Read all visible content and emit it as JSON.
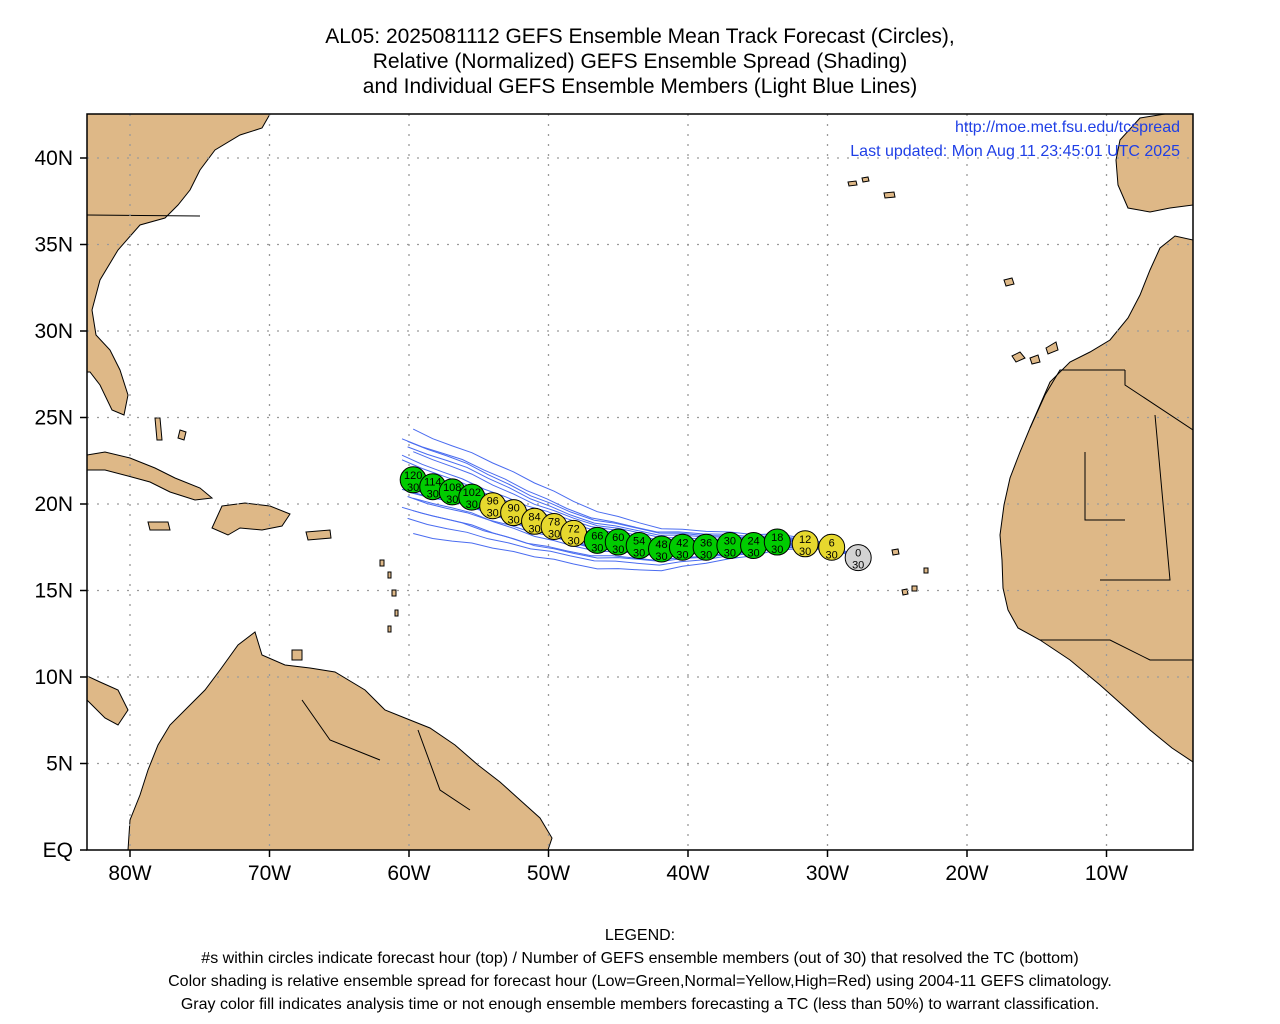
{
  "title_lines": [
    "AL05: 2025081112 GEFS Ensemble Mean Track Forecast (Circles),",
    "Relative (Normalized) GEFS Ensemble Spread (Shading)",
    "and Individual GEFS Ensemble Members (Light Blue Lines)"
  ],
  "source_url": "http://moe.met.fsu.edu/tcspread",
  "last_updated": "Last updated: Mon Aug 11 23:45:01 UTC 2025",
  "lat_labels": [
    "EQ",
    "5N",
    "10N",
    "15N",
    "20N",
    "25N",
    "30N",
    "35N",
    "40N"
  ],
  "lon_labels": [
    "80W",
    "70W",
    "60W",
    "50W",
    "40W",
    "30W",
    "20W",
    "10W"
  ],
  "legend": {
    "heading": "LEGEND:",
    "line1": "#s within circles indicate forecast hour (top) / Number of GEFS ensemble members (out of 30) that resolved the TC (bottom)",
    "line2": "Color shading is relative ensemble spread for forecast hour (Low=Green,Normal=Yellow,High=Red) using 2004-11 GEFS climatology.",
    "line3": "Gray color fill indicates analysis time or not enough ensemble members forecasting a TC (less than 50%) to warrant classification."
  },
  "colors": {
    "land": "#deb887",
    "ocean": "#ffffff",
    "member_lines": "#4a6cf0",
    "low_spread": "#00cc00",
    "normal_spread": "#e6d82e",
    "analysis": "#d3d3d3",
    "link_text": "#1f3fe6"
  },
  "track_points": [
    {
      "hour": "0",
      "members": "30",
      "lon": -27.8,
      "lat": 16.9,
      "spread": "gray"
    },
    {
      "hour": "6",
      "members": "30",
      "lon": -29.7,
      "lat": 17.5,
      "spread": "yellow"
    },
    {
      "hour": "12",
      "members": "30",
      "lon": -31.6,
      "lat": 17.7,
      "spread": "yellow"
    },
    {
      "hour": "18",
      "members": "30",
      "lon": -33.6,
      "lat": 17.8,
      "spread": "green"
    },
    {
      "hour": "24",
      "members": "30",
      "lon": -35.3,
      "lat": 17.6,
      "spread": "green"
    },
    {
      "hour": "30",
      "members": "30",
      "lon": -37.0,
      "lat": 17.6,
      "spread": "green"
    },
    {
      "hour": "36",
      "members": "30",
      "lon": -38.7,
      "lat": 17.5,
      "spread": "green"
    },
    {
      "hour": "42",
      "members": "30",
      "lon": -40.4,
      "lat": 17.5,
      "spread": "green"
    },
    {
      "hour": "48",
      "members": "30",
      "lon": -41.9,
      "lat": 17.4,
      "spread": "green"
    },
    {
      "hour": "54",
      "members": "30",
      "lon": -43.5,
      "lat": 17.6,
      "spread": "green"
    },
    {
      "hour": "60",
      "members": "30",
      "lon": -45.0,
      "lat": 17.8,
      "spread": "green"
    },
    {
      "hour": "66",
      "members": "30",
      "lon": -46.5,
      "lat": 17.9,
      "spread": "green"
    },
    {
      "hour": "72",
      "members": "30",
      "lon": -48.2,
      "lat": 18.3,
      "spread": "yellow"
    },
    {
      "hour": "78",
      "members": "30",
      "lon": -49.6,
      "lat": 18.7,
      "spread": "yellow"
    },
    {
      "hour": "84",
      "members": "30",
      "lon": -51.0,
      "lat": 19.0,
      "spread": "yellow"
    },
    {
      "hour": "90",
      "members": "30",
      "lon": -52.5,
      "lat": 19.5,
      "spread": "yellow"
    },
    {
      "hour": "96",
      "members": "30",
      "lon": -54.0,
      "lat": 19.9,
      "spread": "yellow"
    },
    {
      "hour": "102",
      "members": "30",
      "lon": -55.5,
      "lat": 20.4,
      "spread": "green"
    },
    {
      "hour": "108",
      "members": "30",
      "lon": -56.9,
      "lat": 20.7,
      "spread": "green"
    },
    {
      "hour": "114",
      "members": "30",
      "lon": -58.3,
      "lat": 21.0,
      "spread": "green"
    },
    {
      "hour": "120",
      "members": "30",
      "lon": -59.7,
      "lat": 21.4,
      "spread": "green"
    }
  ]
}
